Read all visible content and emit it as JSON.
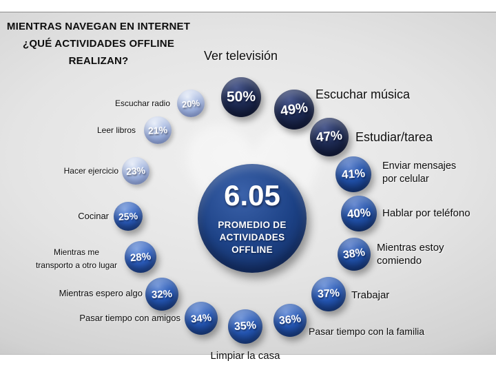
{
  "slide": {
    "title_lines": [
      "MIENTRAS NAVEGAN EN INTERNET",
      "¿QUÉ ACTIVIDADES OFFLINE",
      "REALIZAN?"
    ],
    "watermark": {
      "icon": "heart",
      "glyph": "♥"
    }
  },
  "center_bubble": {
    "value": "6.05",
    "label_lines": [
      "PROMEDIO DE",
      "ACTIVIDADES",
      "OFFLINE"
    ]
  },
  "chart_data": {
    "type": "bubble",
    "title": "MIENTRAS NAVEGAN EN INTERNET ¿QUÉ ACTIVIDADES OFFLINE REALIZAN?",
    "unit": "%",
    "center": {
      "value": 6.05,
      "label": "PROMEDIO DE ACTIVIDADES OFFLINE"
    },
    "layout_hint": "bubbles arranged in a ring around center, values descending clockwise from top",
    "items": [
      {
        "label": "Ver televisión",
        "value": 50,
        "percent_label": "50%"
      },
      {
        "label": "Escuchar música",
        "value": 49,
        "percent_label": "49%"
      },
      {
        "label": "Estudiar/tarea",
        "value": 47,
        "percent_label": "47%"
      },
      {
        "label": "Enviar mensajes por celular",
        "value": 41,
        "percent_label": "41%",
        "label_lines": [
          "Enviar mensajes",
          "por celular"
        ]
      },
      {
        "label": "Hablar por teléfono",
        "value": 40,
        "percent_label": "40%"
      },
      {
        "label": "Mientras estoy comiendo",
        "value": 38,
        "percent_label": "38%",
        "label_lines": [
          "Mientras estoy",
          "comiendo"
        ]
      },
      {
        "label": "Trabajar",
        "value": 37,
        "percent_label": "37%"
      },
      {
        "label": "Pasar tiempo con la familia",
        "value": 36,
        "percent_label": "36%"
      },
      {
        "label": "Limpiar la casa",
        "value": 35,
        "percent_label": "35%"
      },
      {
        "label": "Pasar tiempo con amigos",
        "value": 34,
        "percent_label": "34%"
      },
      {
        "label": "Mientras espero algo",
        "value": 32,
        "percent_label": "32%"
      },
      {
        "label": "Mientras me transporto a otro lugar",
        "value": 28,
        "percent_label": "28%",
        "label_lines": [
          "Mientras me",
          "transporto a otro lugar"
        ]
      },
      {
        "label": "Cocinar",
        "value": 25,
        "percent_label": "25%"
      },
      {
        "label": "Hacer ejercicio",
        "value": 23,
        "percent_label": "23%"
      },
      {
        "label": "Leer libros",
        "value": 21,
        "percent_label": "21%"
      },
      {
        "label": "Escuchar radio",
        "value": 20,
        "percent_label": "20%"
      }
    ]
  },
  "colors": {
    "bubble_dark_navy": "#1d2a52",
    "bubble_blue": "#2050a8",
    "bubble_royal": "#2456b4",
    "bubble_bright_blue": "#2c5ec0",
    "bubble_light_periwinkle": "#9db1dd",
    "center_blue": "#1d4286",
    "background_gray": "#d8d8d8",
    "text": "#0d0d0d"
  }
}
